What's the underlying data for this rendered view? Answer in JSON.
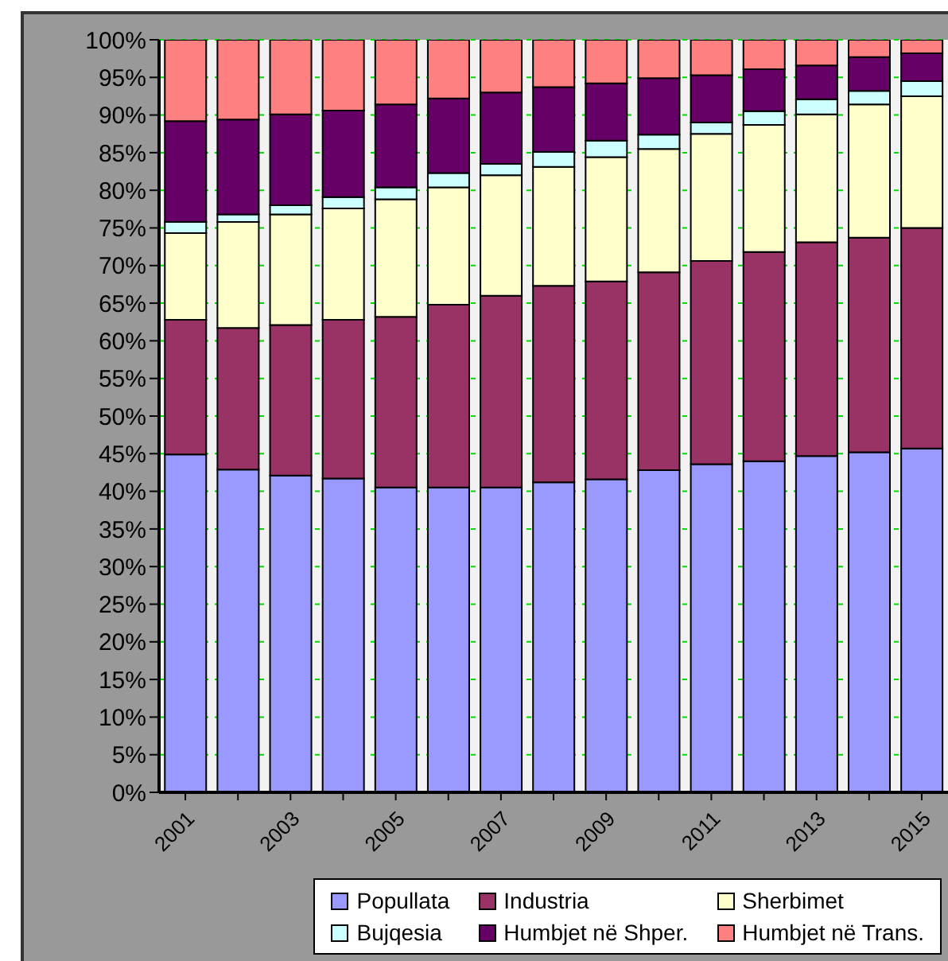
{
  "chart_data": {
    "type": "bar",
    "categories": [
      "2001",
      null,
      "2003",
      null,
      "2005",
      null,
      "2007",
      null,
      "2009",
      null,
      "2011",
      null,
      "2013",
      null,
      "2015"
    ],
    "series": [
      {
        "name": "Popullata",
        "color": "#9999ff",
        "values": [
          44.9,
          42.9,
          42.1,
          41.7,
          40.5,
          40.5,
          40.5,
          41.2,
          41.6,
          42.8,
          43.6,
          44.0,
          44.7,
          45.2,
          45.7
        ]
      },
      {
        "name": "Industria",
        "color": "#993366",
        "values": [
          17.9,
          18.8,
          20.0,
          21.1,
          22.7,
          24.3,
          25.5,
          26.1,
          26.3,
          26.3,
          27.0,
          27.8,
          28.4,
          28.5,
          29.3
        ]
      },
      {
        "name": "Sherbimet",
        "color": "#ffffcc",
        "values": [
          11.5,
          14.1,
          14.7,
          14.8,
          15.6,
          15.6,
          16.0,
          15.8,
          16.5,
          16.4,
          16.9,
          16.9,
          17.0,
          17.7,
          17.5
        ]
      },
      {
        "name": "Bujqesia",
        "color": "#ccffff",
        "values": [
          1.5,
          1.0,
          1.2,
          1.5,
          1.6,
          1.9,
          1.5,
          2.0,
          2.2,
          1.9,
          1.5,
          1.8,
          2.0,
          1.8,
          2.0
        ]
      },
      {
        "name": "Humbjet në Shper.",
        "color": "#660066",
        "values": [
          13.4,
          12.6,
          12.1,
          11.5,
          11.0,
          9.9,
          9.5,
          8.6,
          7.6,
          7.5,
          6.3,
          5.6,
          4.5,
          4.5,
          3.7
        ]
      },
      {
        "name": "Humbjet në Trans.",
        "color": "#ff8080",
        "values": [
          10.8,
          10.6,
          9.9,
          9.4,
          8.6,
          7.8,
          7.0,
          6.3,
          5.8,
          5.1,
          4.7,
          3.9,
          3.4,
          2.3,
          1.8
        ]
      }
    ],
    "stacked": true,
    "ylim": [
      0,
      100
    ],
    "yticks": [
      {
        "value": 0,
        "label": "0%"
      },
      {
        "value": 5,
        "label": "5%"
      },
      {
        "value": 10,
        "label": "10%"
      },
      {
        "value": 15,
        "label": "15%"
      },
      {
        "value": 20,
        "label": "20%"
      },
      {
        "value": 25,
        "label": "25%"
      },
      {
        "value": 30,
        "label": "30%"
      },
      {
        "value": 35,
        "label": "35%"
      },
      {
        "value": 40,
        "label": "40%"
      },
      {
        "value": 45,
        "label": "45%"
      },
      {
        "value": 50,
        "label": "50%"
      },
      {
        "value": 55,
        "label": "55%"
      },
      {
        "value": 60,
        "label": "60%"
      },
      {
        "value": 65,
        "label": "65%"
      },
      {
        "value": 70,
        "label": "70%"
      },
      {
        "value": 75,
        "label": "75%"
      },
      {
        "value": 80,
        "label": "80%"
      },
      {
        "value": 85,
        "label": "85%"
      },
      {
        "value": 90,
        "label": "90%"
      },
      {
        "value": 95,
        "label": "95%"
      },
      {
        "value": 100,
        "label": "100%"
      }
    ],
    "grid": "y",
    "legend": "bottom right"
  }
}
